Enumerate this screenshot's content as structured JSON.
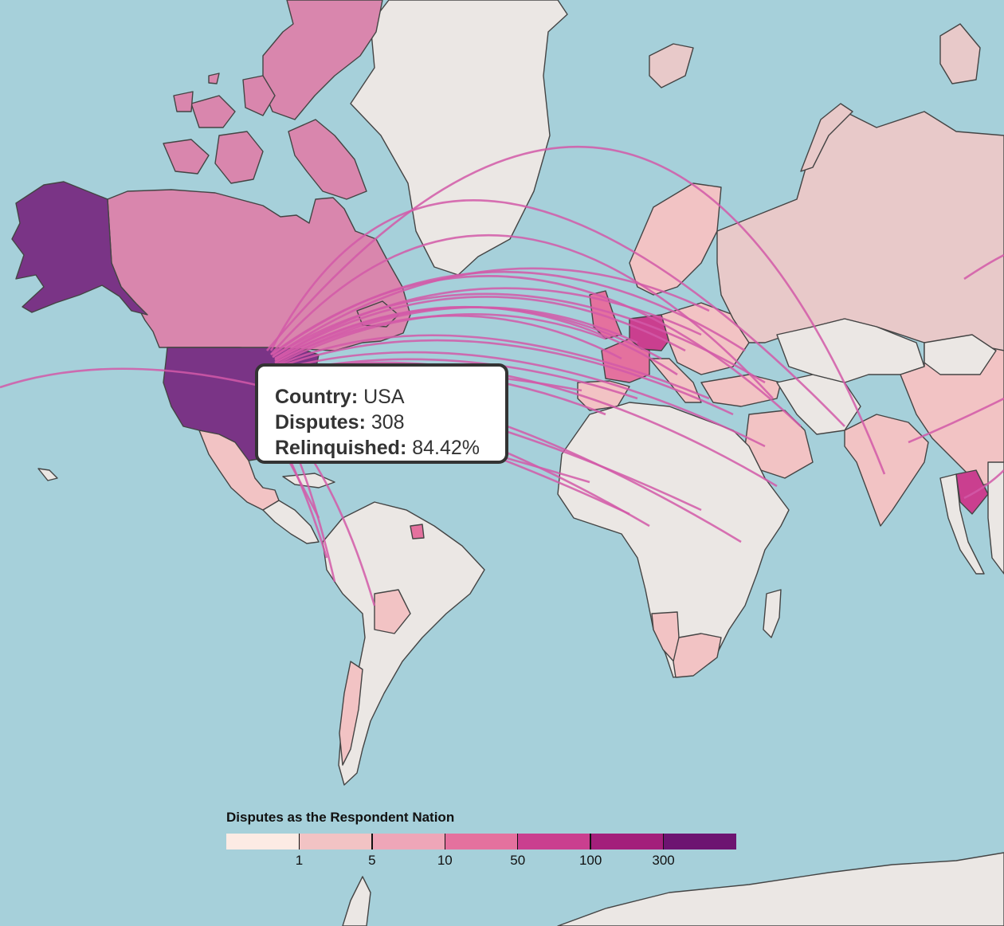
{
  "tooltip": {
    "country_label": "Country:",
    "country_value": "USA",
    "disputes_label": "Disputes:",
    "disputes_value": "308",
    "relinquished_label": "Relinquished:",
    "relinquished_value": "84.42%"
  },
  "legend": {
    "title": "Disputes as the Respondent Nation",
    "bins": [
      {
        "color": "#fcebe4"
      },
      {
        "color": "#f2c3c4"
      },
      {
        "color": "#eea6b8"
      },
      {
        "color": "#e4719e"
      },
      {
        "color": "#ca3f8f"
      },
      {
        "color": "#a31f7b"
      },
      {
        "color": "#6d1471"
      }
    ],
    "ticks": [
      "1",
      "5",
      "10",
      "50",
      "100",
      "300"
    ]
  },
  "colors": {
    "ocean": "#a6d0da",
    "no_data": "#ebe7e4",
    "arc": "#d259a8",
    "usa": "#7a3486",
    "canada": "#d986ad"
  },
  "selected_country": "USA"
}
